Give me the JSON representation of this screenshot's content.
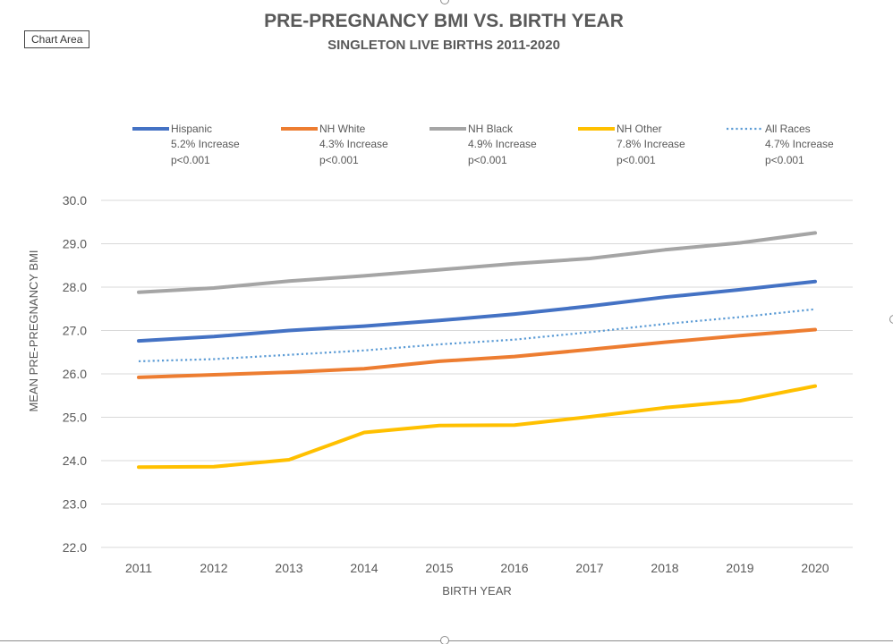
{
  "ui": {
    "chart_area_label": "Chart Area"
  },
  "chart_data": {
    "type": "line",
    "title": "PRE-PREGNANCY BMI VS. BIRTH YEAR",
    "subtitle": "SINGLETON LIVE BIRTHS 2011-2020",
    "xlabel": "BIRTH YEAR",
    "ylabel": "MEAN PRE-PREGNANCY BMI",
    "ylim": [
      22.0,
      30.0
    ],
    "y_ticks": [
      "30.0",
      "29.0",
      "28.0",
      "27.0",
      "26.0",
      "25.0",
      "24.0",
      "23.0",
      "22.0"
    ],
    "y_tick_values": [
      30,
      29,
      28,
      27,
      26,
      25,
      24,
      23,
      22
    ],
    "grid": true,
    "legend_position": "top",
    "categories": [
      "2011",
      "2012",
      "2013",
      "2014",
      "2015",
      "2016",
      "2017",
      "2018",
      "2019",
      "2020"
    ],
    "series": [
      {
        "name": "Hispanic",
        "note": "5.2% Increase",
        "pvalue": "p<0.001",
        "color": "#4472C4",
        "dashed": false,
        "values": [
          26.76,
          26.86,
          27.0,
          27.1,
          27.23,
          27.38,
          27.56,
          27.77,
          27.94,
          28.13
        ]
      },
      {
        "name": "NH White",
        "note": "4.3% Increase",
        "pvalue": "p<0.001",
        "color": "#ED7D31",
        "dashed": false,
        "values": [
          25.92,
          25.98,
          26.04,
          26.12,
          26.29,
          26.4,
          26.56,
          26.73,
          26.88,
          27.02
        ]
      },
      {
        "name": "NH Black",
        "note": "4.9% Increase",
        "pvalue": "p<0.001",
        "color": "#A5A5A5",
        "dashed": false,
        "values": [
          27.88,
          27.98,
          28.14,
          28.26,
          28.4,
          28.54,
          28.66,
          28.86,
          29.02,
          29.25
        ]
      },
      {
        "name": "NH Other",
        "note": "7.8% Increase",
        "pvalue": "p<0.001",
        "color": "#FFC000",
        "dashed": false,
        "values": [
          23.85,
          23.86,
          24.02,
          24.65,
          24.81,
          24.82,
          25.01,
          25.22,
          25.38,
          25.72
        ]
      },
      {
        "name": "All Races",
        "note": "4.7% Increase",
        "pvalue": "p<0.001",
        "color": "#5B9BD5",
        "dashed": true,
        "values": [
          26.29,
          26.34,
          26.44,
          26.54,
          26.68,
          26.79,
          26.96,
          27.15,
          27.31,
          27.49
        ]
      }
    ]
  }
}
